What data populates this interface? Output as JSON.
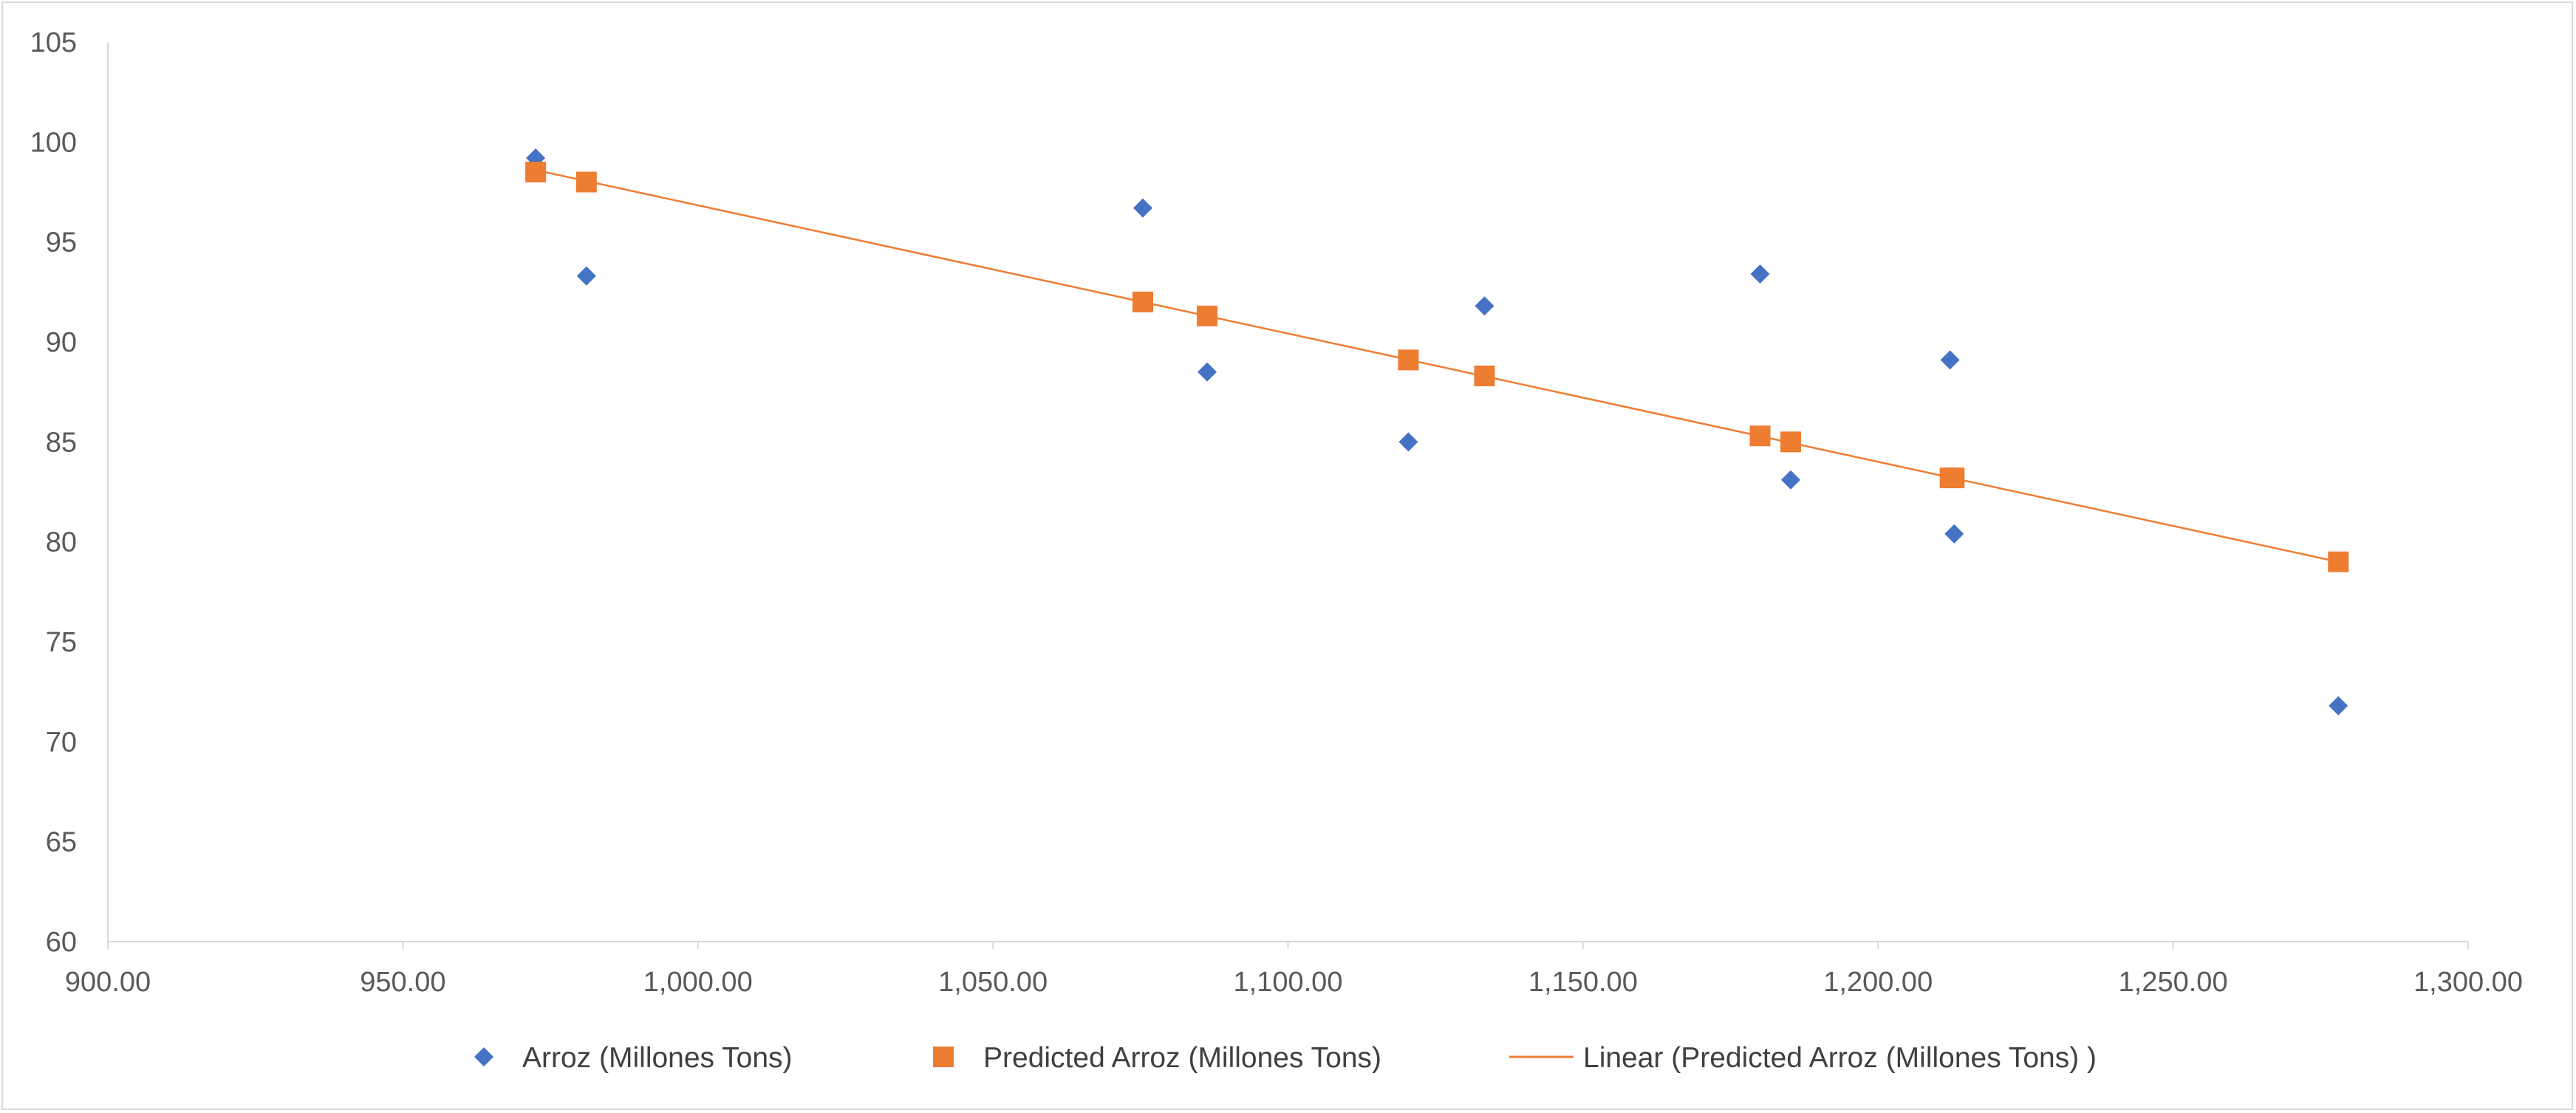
{
  "chart_data": {
    "type": "scatter",
    "title": "",
    "xlabel": "",
    "ylabel": "",
    "xlim": [
      900,
      1300
    ],
    "ylim": [
      60,
      105
    ],
    "x_ticks": [
      "900.00",
      "950.00",
      "1,000.00",
      "1,050.00",
      "1,100.00",
      "1,150.00",
      "1,200.00",
      "1,250.00",
      "1,300.00"
    ],
    "y_ticks": [
      "60",
      "65",
      "70",
      "75",
      "80",
      "85",
      "90",
      "95",
      "100",
      "105"
    ],
    "grid": false,
    "legend_position": "bottom",
    "series": [
      {
        "name": "Arroz (Millones Tons)",
        "marker": "diamond",
        "color": "#4472C4",
        "points": [
          {
            "x": 972.5,
            "y": 99.2
          },
          {
            "x": 981.1,
            "y": 93.3
          },
          {
            "x": 1075.4,
            "y": 96.7
          },
          {
            "x": 1086.3,
            "y": 88.5
          },
          {
            "x": 1120.4,
            "y": 85.0
          },
          {
            "x": 1133.3,
            "y": 91.8
          },
          {
            "x": 1180.0,
            "y": 93.4
          },
          {
            "x": 1185.2,
            "y": 83.1
          },
          {
            "x": 1212.2,
            "y": 89.1
          },
          {
            "x": 1212.9,
            "y": 80.4
          },
          {
            "x": 1278.0,
            "y": 71.8
          }
        ]
      },
      {
        "name": "Predicted Arroz (Millones Tons)",
        "marker": "square",
        "color": "#ED7D31",
        "points": [
          {
            "x": 972.5,
            "y": 98.5
          },
          {
            "x": 981.1,
            "y": 98.0
          },
          {
            "x": 1075.4,
            "y": 92.0
          },
          {
            "x": 1086.3,
            "y": 91.3
          },
          {
            "x": 1120.4,
            "y": 89.1
          },
          {
            "x": 1133.3,
            "y": 88.3
          },
          {
            "x": 1180.0,
            "y": 85.3
          },
          {
            "x": 1185.2,
            "y": 85.0
          },
          {
            "x": 1212.2,
            "y": 83.2
          },
          {
            "x": 1212.9,
            "y": 83.2
          },
          {
            "x": 1278.0,
            "y": 79.0
          }
        ]
      }
    ],
    "trendline": {
      "name": "Linear (Predicted Arroz (Millones Tons) )",
      "type": "linear",
      "color": "#ED7D31",
      "start": {
        "x": 972.5,
        "y": 98.6
      },
      "end": {
        "x": 1278.0,
        "y": 79.0
      }
    }
  }
}
